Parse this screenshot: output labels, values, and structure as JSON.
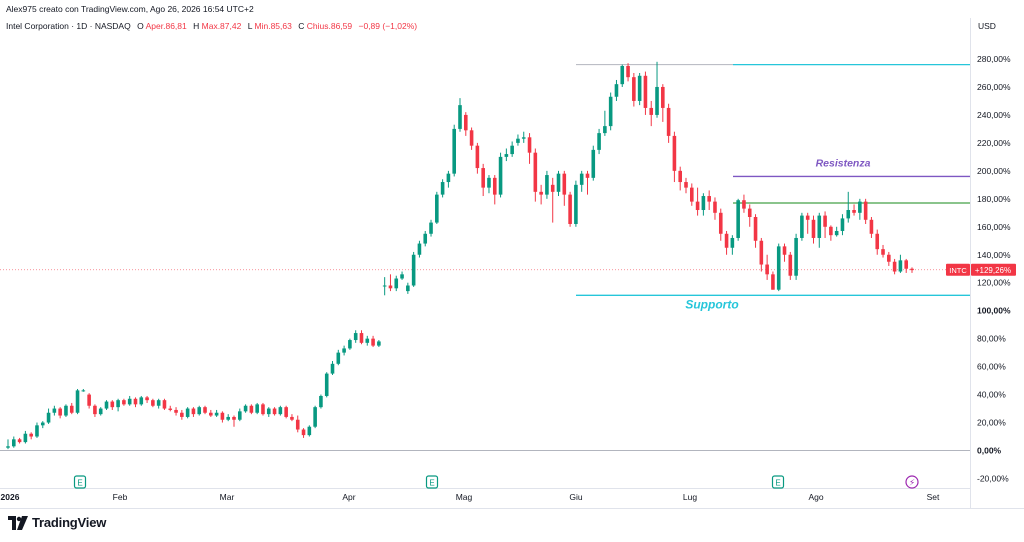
{
  "header": {
    "credit": "Alex975 creato con TradingView.com, Ago 26, 2026 16:54 UTC+2",
    "symbol": "Intel Corporation · 1D · NASDAQ",
    "open_label": "O",
    "open_value": "Aper.86,81",
    "high_label": "H",
    "high_value": "Max.87,42",
    "low_label": "L",
    "low_value": "Min.85,63",
    "close_label": "C",
    "close_value": "Chius.86,59",
    "change": "−0,89 (−1,02%)"
  },
  "currency": "USD",
  "brand": "TradingView",
  "colors": {
    "up": "#089981",
    "down": "#f23645",
    "support": "#26c6da",
    "resistance": "#7e57c2",
    "green_level": "#43a047",
    "price_badge": "#f23645",
    "peak_line": "#b2b5be"
  },
  "chart_data": {
    "type": "candlestick",
    "y_unit": "percent change",
    "ylim": [
      -25,
      290
    ],
    "y_ticks": [
      "280,00%",
      "260,00%",
      "240,00%",
      "220,00%",
      "200,00%",
      "180,00%",
      "160,00%",
      "140,00%",
      "120,00%",
      "100,00%",
      "80,00%",
      "60,00%",
      "40,00%",
      "20,00%",
      "0,00%",
      "-20,00%"
    ],
    "x_labels": [
      "2026",
      "Feb",
      "Mar",
      "Apr",
      "Mag",
      "Giu",
      "Lug",
      "Ago",
      "Set"
    ],
    "levels": [
      {
        "name": "Resistenza",
        "value": 196,
        "color": "#7e57c2"
      },
      {
        "name": "",
        "value": 177,
        "color": "#43a047"
      },
      {
        "name": "Supporto",
        "value": 111,
        "color": "#26c6da"
      },
      {
        "name": "",
        "value": 276,
        "color": "#26c6da"
      }
    ],
    "level_labels": {
      "resistance": "Resistenza",
      "support": "Supporto"
    },
    "price_badge": {
      "symbol": "INTC",
      "value": "+129,26%"
    },
    "current_value": 129.26,
    "events": [
      "E",
      "E",
      "E",
      "⚡"
    ],
    "candles": [
      [
        2,
        3,
        8,
        1
      ],
      [
        3,
        8,
        10,
        2
      ],
      [
        8,
        6,
        9,
        5
      ],
      [
        6,
        12,
        14,
        5
      ],
      [
        12,
        10,
        13,
        8
      ],
      [
        10,
        18,
        20,
        9
      ],
      [
        18,
        20,
        21,
        16
      ],
      [
        20,
        27,
        30,
        19
      ],
      [
        27,
        30,
        32,
        25
      ],
      [
        30,
        25,
        31,
        23
      ],
      [
        25,
        32,
        33,
        24
      ],
      [
        32,
        27,
        34,
        26
      ],
      [
        27,
        43,
        44,
        26
      ],
      [
        43,
        43,
        44,
        42
      ],
      [
        40,
        32,
        41,
        30
      ],
      [
        32,
        26,
        33,
        24
      ],
      [
        26,
        30,
        31,
        25
      ],
      [
        30,
        35,
        36,
        29
      ],
      [
        35,
        31,
        36,
        29
      ],
      [
        31,
        36,
        37,
        28
      ],
      [
        36,
        33,
        37,
        32
      ],
      [
        33,
        37,
        39,
        32
      ],
      [
        37,
        33,
        38,
        31
      ],
      [
        33,
        38,
        39,
        32
      ],
      [
        38,
        36,
        39,
        34
      ],
      [
        36,
        32,
        37,
        31
      ],
      [
        32,
        36,
        37,
        30
      ],
      [
        36,
        30,
        37,
        29
      ],
      [
        30,
        29,
        32,
        28
      ],
      [
        29,
        27,
        31,
        25
      ],
      [
        27,
        24,
        29,
        22
      ],
      [
        24,
        30,
        31,
        23
      ],
      [
        30,
        26,
        31,
        24
      ],
      [
        26,
        31,
        32,
        25
      ],
      [
        31,
        27,
        32,
        26
      ],
      [
        27,
        25,
        29,
        24
      ],
      [
        25,
        27,
        29,
        24
      ],
      [
        27,
        22,
        28,
        20
      ],
      [
        22,
        24,
        26,
        21
      ],
      [
        24,
        22,
        25,
        17
      ],
      [
        22,
        28,
        30,
        21
      ],
      [
        28,
        32,
        33,
        27
      ],
      [
        32,
        27,
        33,
        26
      ],
      [
        27,
        33,
        34,
        26
      ],
      [
        33,
        26,
        34,
        25
      ],
      [
        26,
        30,
        31,
        24
      ],
      [
        30,
        26,
        31,
        25
      ],
      [
        26,
        31,
        32,
        25
      ],
      [
        31,
        24,
        32,
        23
      ],
      [
        24,
        22,
        26,
        21
      ],
      [
        22,
        15,
        25,
        13
      ],
      [
        15,
        11,
        16,
        9
      ],
      [
        11,
        17,
        18,
        10
      ],
      [
        17,
        31,
        32,
        16
      ],
      [
        31,
        39,
        40,
        30
      ],
      [
        39,
        55,
        56,
        38
      ],
      [
        55,
        62,
        64,
        54
      ],
      [
        62,
        70,
        72,
        61
      ],
      [
        70,
        73,
        75,
        68
      ],
      [
        73,
        79,
        80,
        72
      ],
      [
        79,
        84,
        86,
        77
      ],
      [
        84,
        77,
        86,
        76
      ],
      [
        77,
        80,
        82,
        75
      ],
      [
        80,
        75,
        82,
        74
      ],
      [
        75,
        78,
        79,
        74
      ],
      [
        118,
        118,
        124,
        111
      ],
      [
        118,
        116,
        126,
        114
      ],
      [
        116,
        123,
        125,
        114
      ],
      [
        123,
        126,
        128,
        122
      ],
      [
        114,
        118,
        120,
        112
      ],
      [
        118,
        140,
        142,
        117
      ],
      [
        140,
        148,
        150,
        138
      ],
      [
        148,
        155,
        157,
        146
      ],
      [
        155,
        163,
        165,
        153
      ],
      [
        163,
        183,
        185,
        162
      ],
      [
        183,
        192,
        194,
        181
      ],
      [
        192,
        198,
        200,
        188
      ],
      [
        198,
        230,
        233,
        196
      ],
      [
        230,
        247,
        252,
        228
      ],
      [
        240,
        229,
        242,
        225
      ],
      [
        229,
        218,
        231,
        215
      ],
      [
        218,
        202,
        220,
        198
      ],
      [
        202,
        188,
        205,
        182
      ],
      [
        188,
        195,
        197,
        184
      ],
      [
        195,
        183,
        197,
        176
      ],
      [
        183,
        210,
        213,
        181
      ],
      [
        210,
        212,
        216,
        207
      ],
      [
        212,
        218,
        221,
        210
      ],
      [
        220,
        223,
        226,
        218
      ],
      [
        223,
        224,
        228,
        220
      ],
      [
        224,
        213,
        227,
        205
      ],
      [
        213,
        185,
        216,
        178
      ],
      [
        185,
        183,
        190,
        176
      ],
      [
        183,
        197,
        200,
        180
      ],
      [
        190,
        185,
        195,
        163
      ],
      [
        185,
        198,
        200,
        182
      ],
      [
        198,
        183,
        200,
        175
      ],
      [
        183,
        162,
        185,
        160
      ],
      [
        162,
        190,
        193,
        160
      ],
      [
        190,
        198,
        200,
        185
      ],
      [
        198,
        195,
        200,
        183
      ],
      [
        195,
        215,
        218,
        193
      ],
      [
        215,
        227,
        230,
        212
      ],
      [
        227,
        232,
        243,
        225
      ],
      [
        232,
        253,
        256,
        229
      ],
      [
        253,
        262,
        265,
        250
      ],
      [
        262,
        275,
        276,
        260
      ],
      [
        275,
        267,
        277,
        264
      ],
      [
        267,
        250,
        270,
        246
      ],
      [
        250,
        268,
        270,
        247
      ],
      [
        268,
        245,
        271,
        240
      ],
      [
        245,
        240,
        250,
        232
      ],
      [
        240,
        260,
        278,
        238
      ],
      [
        260,
        245,
        262,
        235
      ],
      [
        245,
        225,
        248,
        220
      ],
      [
        225,
        200,
        228,
        192
      ],
      [
        200,
        192,
        203,
        186
      ],
      [
        192,
        188,
        195,
        184
      ],
      [
        188,
        178,
        191,
        175
      ],
      [
        178,
        172,
        188,
        168
      ],
      [
        172,
        182,
        184,
        168
      ],
      [
        182,
        178,
        186,
        172
      ],
      [
        178,
        170,
        181,
        165
      ],
      [
        170,
        155,
        173,
        150
      ],
      [
        155,
        145,
        157,
        140
      ],
      [
        145,
        152,
        154,
        140
      ],
      [
        152,
        179,
        180,
        150
      ],
      [
        179,
        173,
        183,
        170
      ],
      [
        173,
        167,
        176,
        160
      ],
      [
        167,
        150,
        169,
        145
      ],
      [
        150,
        133,
        152,
        128
      ],
      [
        133,
        126,
        140,
        122
      ],
      [
        126,
        115,
        128,
        115
      ],
      [
        115,
        146,
        148,
        114
      ],
      [
        146,
        140,
        148,
        135
      ],
      [
        140,
        125,
        142,
        122
      ],
      [
        125,
        152,
        155,
        122
      ],
      [
        152,
        168,
        170,
        150
      ],
      [
        168,
        165,
        170,
        155
      ],
      [
        165,
        152,
        168,
        148
      ],
      [
        152,
        168,
        170,
        145
      ],
      [
        168,
        160,
        171,
        152
      ],
      [
        160,
        154,
        161,
        150
      ],
      [
        154,
        157,
        160,
        153
      ],
      [
        157,
        166,
        169,
        154
      ],
      [
        166,
        172,
        185,
        163
      ],
      [
        172,
        170,
        176,
        168
      ],
      [
        170,
        178,
        180,
        165
      ],
      [
        178,
        165,
        180,
        162
      ],
      [
        165,
        155,
        167,
        152
      ],
      [
        155,
        144,
        158,
        140
      ],
      [
        144,
        140,
        147,
        138
      ],
      [
        140,
        135,
        142,
        132
      ],
      [
        135,
        128,
        137,
        126
      ],
      [
        128,
        136,
        140,
        127
      ],
      [
        136,
        130,
        137,
        127
      ],
      [
        130,
        129,
        131,
        127
      ]
    ]
  }
}
